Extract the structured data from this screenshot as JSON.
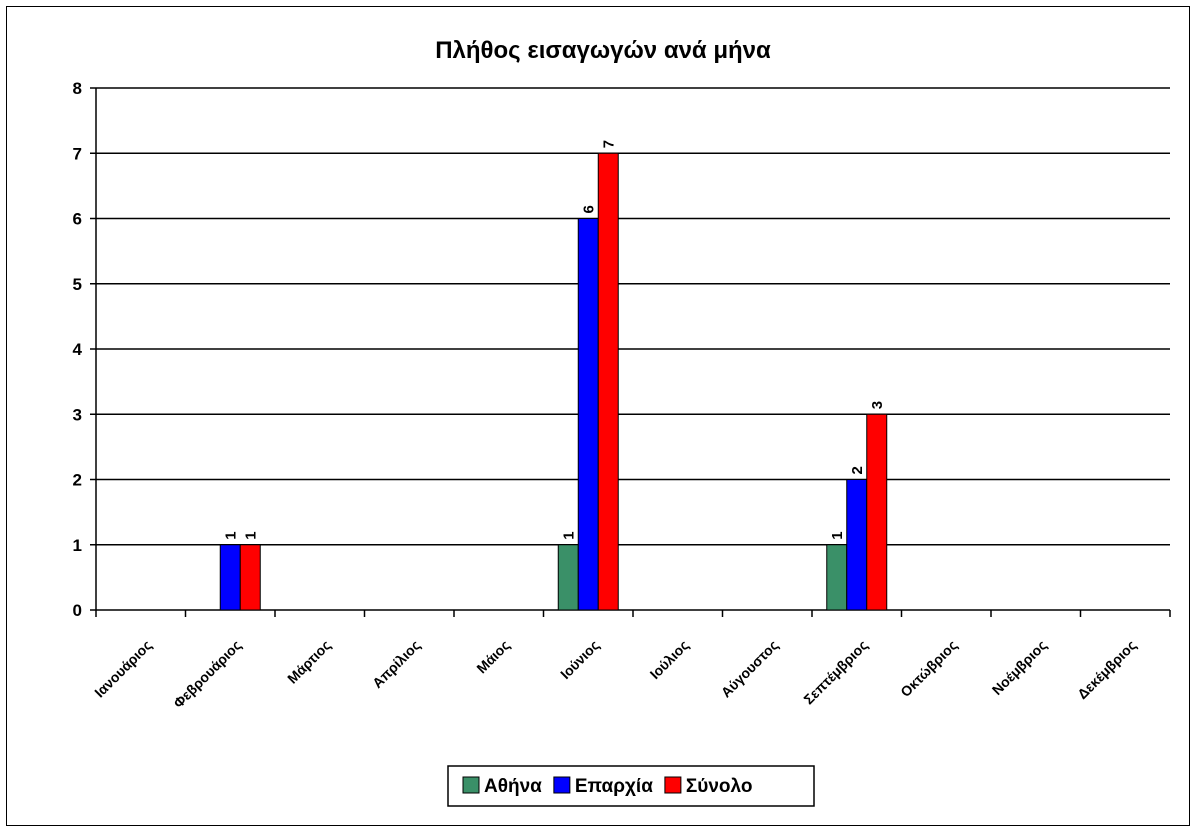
{
  "chart_data": {
    "type": "bar",
    "title": "Πλήθος εισαγωγών ανά μήνα",
    "xlabel": "",
    "ylabel": "",
    "ylim": [
      0,
      8
    ],
    "yticks": [
      "0",
      "1",
      "2",
      "3",
      "4",
      "5",
      "6",
      "7",
      "8"
    ],
    "grid": true,
    "legend_position": "bottom",
    "categories": [
      "Ιανουάριος",
      "Φεβρουάριος",
      "Μάρτιος",
      "Απρίλιος",
      "Μάιος",
      "Ιούνιος",
      "Ιούλιος",
      "Αύγουστος",
      "Σεπτέμβριος",
      "Οκτώβριος",
      "Νοέμβριος",
      "Δεκέμβριος"
    ],
    "series": [
      {
        "name": "Αθήνα",
        "color": "#3a9068",
        "values": [
          0,
          0,
          0,
          0,
          0,
          1,
          0,
          0,
          1,
          0,
          0,
          0
        ]
      },
      {
        "name": "Επαρχία",
        "color": "#0000ff",
        "values": [
          0,
          1,
          0,
          0,
          0,
          6,
          0,
          0,
          2,
          0,
          0,
          0
        ]
      },
      {
        "name": "Σύνολο",
        "color": "#ff0000",
        "values": [
          0,
          1,
          0,
          0,
          0,
          7,
          0,
          0,
          3,
          0,
          0,
          0
        ]
      }
    ]
  }
}
